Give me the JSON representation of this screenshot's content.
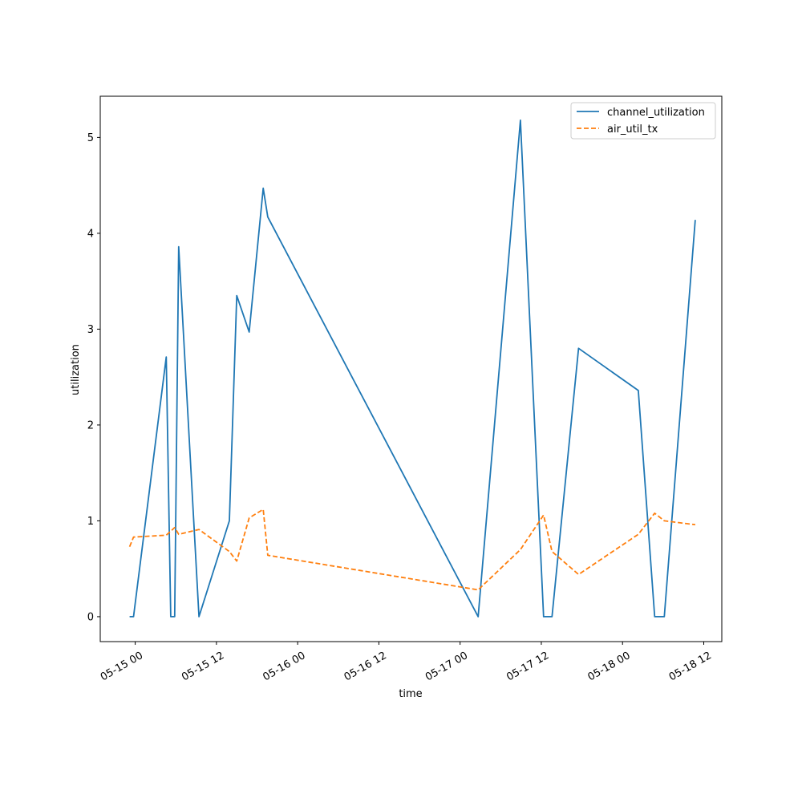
{
  "chart_data": {
    "type": "line",
    "xlabel": "time",
    "ylabel": "utilization",
    "x_ticks": [
      "05-15 00",
      "05-15 12",
      "05-16 00",
      "05-16 12",
      "05-17 00",
      "05-17 12",
      "05-18 00",
      "05-18 12"
    ],
    "y_ticks": [
      "0",
      "1",
      "2",
      "3",
      "4",
      "5"
    ],
    "xlim": [
      "2024-05-14T18:50",
      "2024-05-18T14:40"
    ],
    "ylim": [
      -0.26,
      5.43
    ],
    "legend_position": "top-right",
    "series": [
      {
        "name": "channel_utilization",
        "color": "#1f77b4",
        "style": "solid",
        "points": [
          {
            "x": "2024-05-14T23:10",
            "y": 0.0
          },
          {
            "x": "2024-05-14T23:45",
            "y": 0.0
          },
          {
            "x": "2024-05-15T04:35",
            "y": 2.71
          },
          {
            "x": "2024-05-15T05:15",
            "y": 0.0
          },
          {
            "x": "2024-05-15T05:50",
            "y": 0.0
          },
          {
            "x": "2024-05-15T06:25",
            "y": 3.86
          },
          {
            "x": "2024-05-15T09:25",
            "y": 0.0
          },
          {
            "x": "2024-05-15T13:55",
            "y": 1.0
          },
          {
            "x": "2024-05-15T15:00",
            "y": 3.35
          },
          {
            "x": "2024-05-15T16:50",
            "y": 2.97
          },
          {
            "x": "2024-05-15T18:55",
            "y": 4.47
          },
          {
            "x": "2024-05-15T19:35",
            "y": 4.17
          },
          {
            "x": "2024-05-17T02:40",
            "y": 0.0
          },
          {
            "x": "2024-05-17T08:55",
            "y": 5.18
          },
          {
            "x": "2024-05-17T12:20",
            "y": 0.0
          },
          {
            "x": "2024-05-17T13:35",
            "y": 0.0
          },
          {
            "x": "2024-05-17T17:30",
            "y": 2.8
          },
          {
            "x": "2024-05-18T02:20",
            "y": 2.36
          },
          {
            "x": "2024-05-18T04:45",
            "y": 0.0
          },
          {
            "x": "2024-05-18T06:10",
            "y": 0.0
          },
          {
            "x": "2024-05-18T10:45",
            "y": 4.14
          }
        ]
      },
      {
        "name": "air_util_tx",
        "color": "#ff7f0e",
        "style": "dashed",
        "points": [
          {
            "x": "2024-05-14T23:10",
            "y": 0.73
          },
          {
            "x": "2024-05-14T23:45",
            "y": 0.83
          },
          {
            "x": "2024-05-15T04:35",
            "y": 0.85
          },
          {
            "x": "2024-05-15T05:50",
            "y": 0.93
          },
          {
            "x": "2024-05-15T06:25",
            "y": 0.86
          },
          {
            "x": "2024-05-15T09:25",
            "y": 0.91
          },
          {
            "x": "2024-05-15T13:55",
            "y": 0.68
          },
          {
            "x": "2024-05-15T15:00",
            "y": 0.58
          },
          {
            "x": "2024-05-15T16:50",
            "y": 1.03
          },
          {
            "x": "2024-05-15T18:55",
            "y": 1.12
          },
          {
            "x": "2024-05-15T19:35",
            "y": 0.64
          },
          {
            "x": "2024-05-17T02:40",
            "y": 0.28
          },
          {
            "x": "2024-05-17T08:55",
            "y": 0.7
          },
          {
            "x": "2024-05-17T12:20",
            "y": 1.06
          },
          {
            "x": "2024-05-17T13:35",
            "y": 0.68
          },
          {
            "x": "2024-05-17T17:30",
            "y": 0.44
          },
          {
            "x": "2024-05-18T02:20",
            "y": 0.86
          },
          {
            "x": "2024-05-18T04:45",
            "y": 1.08
          },
          {
            "x": "2024-05-18T06:10",
            "y": 1.0
          },
          {
            "x": "2024-05-18T10:45",
            "y": 0.96
          }
        ]
      }
    ]
  }
}
